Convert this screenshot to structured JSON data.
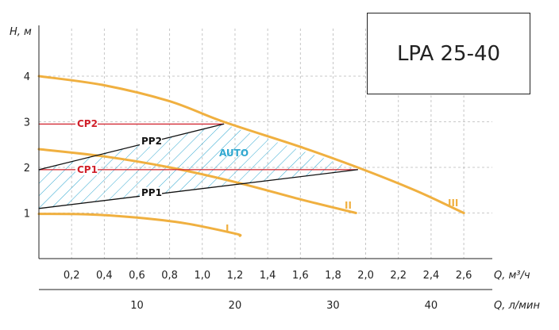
{
  "model": "LPA 25-40",
  "chart_data": {
    "type": "line",
    "xlabel": "Q, м³/ч",
    "x2label": "Q, л/мин",
    "ylabel": "H, м",
    "xlim": [
      0,
      2.8
    ],
    "ylim": [
      0,
      4.8
    ],
    "grid": true,
    "x_ticks": [
      "0,2",
      "0,4",
      "0,6",
      "0,8",
      "1,0",
      "1,2",
      "1,4",
      "1,6",
      "1,8",
      "2,0",
      "2,2",
      "2,4",
      "2,6"
    ],
    "x2_ticks": [
      "10",
      "20",
      "30",
      "40"
    ],
    "y_ticks": [
      "1",
      "2",
      "3",
      "4"
    ],
    "series": [
      {
        "name": "I",
        "color": "#f0b040",
        "x": [
          0,
          0.3,
          0.6,
          0.9,
          1.2,
          1.23
        ],
        "y": [
          0.98,
          0.97,
          0.9,
          0.77,
          0.55,
          0.5
        ]
      },
      {
        "name": "II",
        "color": "#f0b040",
        "x": [
          0,
          0.4,
          0.8,
          1.2,
          1.6,
          1.94
        ],
        "y": [
          2.4,
          2.24,
          2.0,
          1.68,
          1.3,
          1.0
        ]
      },
      {
        "name": "III",
        "color": "#f0b040",
        "x": [
          0,
          0.4,
          0.8,
          1.13,
          1.6,
          1.95,
          2.3,
          2.6
        ],
        "y": [
          4.0,
          3.8,
          3.45,
          3.0,
          2.45,
          2.0,
          1.5,
          1.0
        ]
      },
      {
        "name": "CP2",
        "color": "#d0202a",
        "x": [
          0,
          1.13
        ],
        "y": [
          2.95,
          2.95
        ]
      },
      {
        "name": "CP1",
        "color": "#d0202a",
        "x": [
          0,
          1.95
        ],
        "y": [
          1.95,
          1.95
        ]
      },
      {
        "name": "PP2",
        "color": "#111111",
        "x": [
          0,
          1.13
        ],
        "y": [
          1.95,
          2.95
        ]
      },
      {
        "name": "PP1",
        "color": "#111111",
        "x": [
          0,
          1.95
        ],
        "y": [
          1.1,
          1.95
        ]
      }
    ],
    "auto_region": {
      "name": "AUTO",
      "color": "#30a8d0",
      "x": [
        0,
        1.13,
        1.95,
        0
      ],
      "y": [
        1.95,
        2.95,
        1.95,
        1.1
      ]
    }
  }
}
